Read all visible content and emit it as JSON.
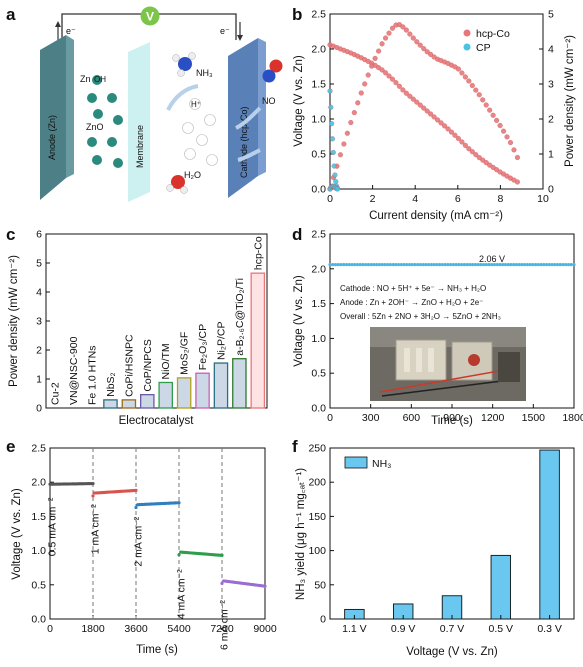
{
  "panels": {
    "a": {
      "label": "a",
      "voltmeter": "V",
      "electron_left": "e⁻",
      "electron_right": "e⁻",
      "anode": "Anode (Zn)",
      "membrane": "Membrane",
      "cathode": "Cathode (hcp-Co)",
      "zn": "Zn",
      "zno": "ZnO",
      "nh3": "NH₃",
      "no": "NO",
      "h2o": "H₂O",
      "h_plus": "H⁺",
      "oh_ion": "OH"
    },
    "b": {
      "label": "b"
    },
    "c": {
      "label": "c"
    },
    "d": {
      "label": "d",
      "annotation": "2.06 V",
      "eq_cathode": "Cathode : NO + 5H⁺ + 5e⁻ → NH₃ + H₂O",
      "eq_anode": "Anode : Zn + 2OH⁻ → ZnO + H₂O + 2e⁻",
      "eq_overall": "Overall : 5Zn + 2NO + 3H₂O → 5ZnO + 2NH₃"
    },
    "e": {
      "label": "e"
    },
    "f": {
      "label": "f"
    }
  },
  "chart_data": [
    {
      "id": "b",
      "type": "line",
      "xlabel": "Current density (mA cm⁻²)",
      "ylabel": "Voltage (V vs. Zn)",
      "y2label": "Power density (mW cm⁻²)",
      "xlim": [
        0,
        10
      ],
      "ylim": [
        0,
        2.5
      ],
      "y2lim": [
        0,
        5
      ],
      "xticks": [
        0,
        2,
        4,
        6,
        8,
        10
      ],
      "yticks": [
        0.0,
        0.5,
        1.0,
        1.5,
        2.0,
        2.5
      ],
      "y2ticks": [
        0,
        1,
        2,
        3,
        4,
        5
      ],
      "legend_position": "top-right",
      "series": [
        {
          "name": "hcp-Co",
          "color": "#e8777a",
          "axis": "left",
          "x": [
            0.0,
            0.5,
            1.0,
            1.5,
            2.0,
            2.5,
            3.0,
            3.5,
            4.0,
            4.5,
            5.0,
            5.5,
            6.0,
            6.5,
            7.0,
            7.5,
            8.0,
            8.5,
            8.8
          ],
          "y": [
            2.06,
            2.0,
            1.94,
            1.87,
            1.79,
            1.69,
            1.55,
            1.39,
            1.26,
            1.13,
            1.0,
            0.87,
            0.73,
            0.58,
            0.45,
            0.34,
            0.24,
            0.15,
            0.1
          ]
        },
        {
          "name": "hcp-Co",
          "color": "#e8777a",
          "axis": "right",
          "x": [
            0.0,
            0.5,
            1.0,
            1.5,
            2.0,
            2.5,
            3.0,
            3.2,
            3.5,
            4.0,
            4.5,
            5.0,
            5.5,
            6.0,
            6.5,
            7.0,
            7.5,
            8.0,
            8.5,
            8.8
          ],
          "y": [
            0.0,
            1.0,
            1.94,
            2.8,
            3.58,
            4.22,
            4.65,
            4.72,
            4.6,
            4.25,
            3.95,
            3.72,
            3.6,
            3.45,
            3.1,
            2.7,
            2.25,
            1.8,
            1.3,
            0.9
          ]
        },
        {
          "name": "CP",
          "color": "#48c3e3",
          "axis": "left",
          "x": [
            0.0,
            0.05,
            0.1,
            0.15,
            0.2,
            0.25,
            0.3,
            0.35
          ],
          "y": [
            1.4,
            1.1,
            0.8,
            0.55,
            0.3,
            0.15,
            0.05,
            0.01
          ]
        },
        {
          "name": "CP",
          "color": "#48c3e3",
          "axis": "right",
          "x": [
            0.0,
            0.05,
            0.1,
            0.15,
            0.2,
            0.25,
            0.3,
            0.35
          ],
          "y": [
            0.0,
            0.06,
            0.08,
            0.08,
            0.06,
            0.04,
            0.015,
            0.0
          ]
        }
      ]
    },
    {
      "id": "c",
      "type": "bar",
      "xlabel": "Electrocatalyst",
      "ylabel": "Power density (mW cm⁻²)",
      "ylim": [
        0,
        6
      ],
      "yticks": [
        0,
        1,
        2,
        3,
        4,
        5,
        6
      ],
      "categories": [
        "Cu-2",
        "VN@NSC-900",
        "Fe 1.0 HTNs",
        "NbS₂",
        "CoPi/HSNPC",
        "CoP/NPCS",
        "NiO/TM",
        "MoS₂/GF",
        "Fe₂O₃/CP",
        "Ni₂P/CP",
        "a-B₂.₆C@TiO₂/Ti",
        "hcp-Co"
      ],
      "values": [
        0.0,
        0.0,
        0.0,
        0.28,
        0.28,
        0.46,
        0.88,
        1.04,
        1.2,
        1.55,
        1.7,
        4.65
      ],
      "colors": [
        "#2e9e4c",
        "#4fb4c8",
        "#2e9e4c",
        "#2c6d83",
        "#9a6a18",
        "#6a5aa8",
        "#2e9e4c",
        "#b4a21a",
        "#c85fb4",
        "#2c6d83",
        "#2e7a2e",
        "#e8777a"
      ]
    },
    {
      "id": "d",
      "type": "line",
      "xlabel": "Time (s)",
      "ylabel": "Voltage (V vs. Zn)",
      "xlim": [
        0,
        1800
      ],
      "ylim": [
        0,
        2.5
      ],
      "xticks": [
        0,
        300,
        600,
        900,
        1200,
        1500,
        1800
      ],
      "yticks": [
        0.0,
        0.5,
        1.0,
        1.5,
        2.0,
        2.5
      ],
      "series": [
        {
          "color": "#48b8e3",
          "x": [
            0,
            1800
          ],
          "y": [
            2.06,
            2.06
          ]
        }
      ]
    },
    {
      "id": "e",
      "type": "line",
      "xlabel": "Time (s)",
      "ylabel": "Voltage (V vs. Zn)",
      "xlim": [
        0,
        9000
      ],
      "ylim": [
        0,
        2.5
      ],
      "xticks": [
        0,
        1800,
        3600,
        5400,
        7200,
        9000
      ],
      "yticks": [
        0.0,
        0.5,
        1.0,
        1.5,
        2.0,
        2.5
      ],
      "dividers": [
        1800,
        3600,
        5400,
        7200
      ],
      "series": [
        {
          "name": "0.5 mA cm⁻²",
          "color": "#555555",
          "x": [
            0,
            1800
          ],
          "y": [
            1.97,
            1.98
          ]
        },
        {
          "name": "1 mA cm⁻²",
          "color": "#d9534f",
          "x": [
            1800,
            3600
          ],
          "y": [
            1.84,
            1.88
          ]
        },
        {
          "name": "2 mA cm⁻²",
          "color": "#2f7fc1",
          "x": [
            3600,
            5400
          ],
          "y": [
            1.67,
            1.7
          ]
        },
        {
          "name": "4 mA cm⁻²",
          "color": "#2e9e4c",
          "x": [
            5400,
            7200
          ],
          "y": [
            0.98,
            0.93
          ]
        },
        {
          "name": "6 mA cm⁻²",
          "color": "#9b6cd1",
          "x": [
            7200,
            9000
          ],
          "y": [
            0.56,
            0.48
          ]
        }
      ]
    },
    {
      "id": "f",
      "type": "bar",
      "xlabel": "Voltage (V vs. Zn)",
      "ylabel": "NH₃ yield (μg h⁻¹ mg꜀ₐₜ⁻¹)",
      "ylim": [
        0,
        250
      ],
      "yticks": [
        0,
        50,
        100,
        150,
        200,
        250
      ],
      "categories": [
        "1.1 V",
        "0.9 V",
        "0.7 V",
        "0.5 V",
        "0.3 V"
      ],
      "values": [
        14,
        22,
        34,
        93,
        247
      ],
      "legend": "NH₃",
      "color": "#6ac8f0"
    }
  ]
}
